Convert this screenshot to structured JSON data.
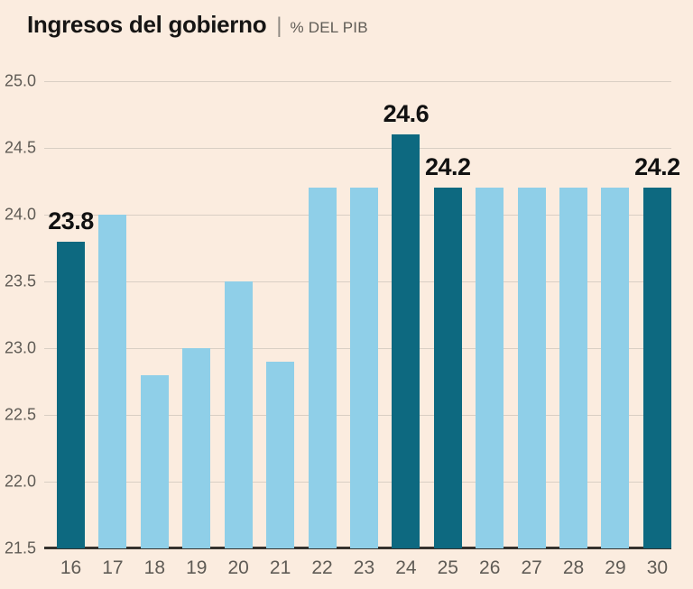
{
  "header": {
    "title": "Ingresos del gobierno",
    "separator": "|",
    "subtitle": "% DEL PIB"
  },
  "colors": {
    "background": "#fbecdf",
    "bar_light": "#8fcfe8",
    "bar_dark": "#0d6980",
    "gridline": "#d9cfc4",
    "axis_line": "#35322e",
    "text_dark": "#161514",
    "text_gray": "#5f5b55"
  },
  "chart_data": {
    "type": "bar",
    "title": "Ingresos del gobierno",
    "subtitle": "% DEL PIB",
    "categories": [
      "16",
      "17",
      "18",
      "19",
      "20",
      "21",
      "22",
      "23",
      "24",
      "25",
      "26",
      "27",
      "28",
      "29",
      "30"
    ],
    "values": [
      23.8,
      24.0,
      22.8,
      23.0,
      23.5,
      22.9,
      24.2,
      24.2,
      24.6,
      24.2,
      24.2,
      24.2,
      24.2,
      24.2,
      24.2
    ],
    "highlighted_indices": [
      0,
      8,
      9,
      14
    ],
    "data_labels": {
      "16": "23.8",
      "24": "24.6",
      "25": "24.2",
      "30": "24.2"
    },
    "ylim": [
      21.5,
      25.0
    ],
    "yticks": [
      25.0,
      24.5,
      24.0,
      23.5,
      23.0,
      22.5,
      22.0,
      21.5
    ],
    "ytick_labels": [
      "25.0",
      "24.5",
      "24.0",
      "23.5",
      "23.0",
      "22.5",
      "22.0",
      "21.5"
    ],
    "grid": true,
    "legend": "none",
    "xlabel": "",
    "ylabel": "% DEL PIB"
  }
}
